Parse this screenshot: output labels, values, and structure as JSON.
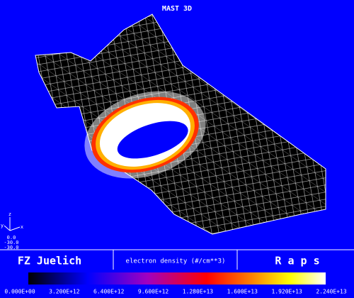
{
  "header": {
    "title": "MAST 3D"
  },
  "axes_triad": {
    "axes": [
      "z",
      "y",
      "x"
    ],
    "coordinates": [
      "0.0",
      "-30.0",
      "-30.0"
    ]
  },
  "footer": {
    "institute": "FZ Juelich",
    "quantity": "electron density (#/cm**3)",
    "program": "R a p s"
  },
  "colorbar": {
    "ticks": [
      "0.000E+00",
      "3.200E+12",
      "6.400E+12",
      "9.600E+12",
      "1.280E+13",
      "1.600E+13",
      "1.920E+13",
      "2.240E+13"
    ]
  }
}
